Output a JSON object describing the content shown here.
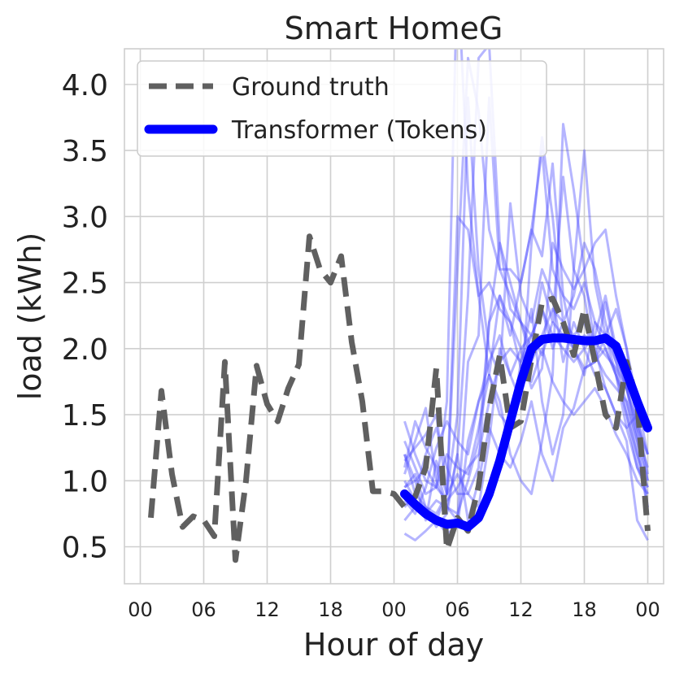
{
  "chart_data": {
    "type": "line",
    "title": "Smart HomeG",
    "xlabel": "Hour of day",
    "ylabel": "load (kWh)",
    "x_tick_labels": [
      "00",
      "06",
      "12",
      "18",
      "00",
      "06",
      "12",
      "18",
      "00"
    ],
    "x_tick_hours": [
      0,
      6,
      12,
      18,
      24,
      30,
      36,
      42,
      48
    ],
    "xlim": [
      -1.5,
      49.5
    ],
    "y_ticks": [
      0.5,
      1.0,
      1.5,
      2.0,
      2.5,
      3.0,
      3.5,
      4.0
    ],
    "y_tick_labels": [
      "0.5",
      "1.0",
      "1.5",
      "2.0",
      "2.5",
      "3.0",
      "3.5",
      "4.0"
    ],
    "ylim": [
      0.22,
      4.27
    ],
    "grid": true,
    "legend_position": "top-left",
    "legend": [
      "Ground truth",
      "Transformer (Tokens)"
    ],
    "series": [
      {
        "name": "Ground truth",
        "style": "dashed",
        "color": "#606060",
        "x": [
          1,
          2,
          3,
          4,
          5,
          6,
          7,
          8,
          9,
          10,
          11,
          12,
          13,
          14,
          15,
          16,
          17,
          18,
          19,
          20,
          21,
          22,
          23,
          24,
          25,
          26,
          27,
          28,
          29,
          30,
          31,
          32,
          33,
          34,
          35,
          36,
          37,
          38,
          39,
          40,
          41,
          42,
          43,
          44,
          45,
          46,
          47,
          48
        ],
        "y": [
          0.72,
          1.68,
          1.05,
          0.65,
          0.73,
          0.7,
          0.58,
          1.9,
          0.4,
          1.0,
          1.87,
          1.58,
          1.45,
          1.7,
          1.88,
          2.85,
          2.6,
          2.5,
          2.7,
          2.05,
          1.6,
          0.92,
          0.92,
          0.9,
          0.8,
          0.88,
          1.1,
          1.85,
          0.48,
          0.72,
          0.62,
          0.96,
          1.55,
          1.95,
          1.4,
          1.45,
          1.92,
          2.35,
          2.38,
          2.2,
          1.95,
          2.3,
          1.9,
          1.5,
          1.4,
          1.9,
          1.6,
          0.62
        ]
      },
      {
        "name": "Transformer (Tokens)",
        "style": "solid",
        "color": "#0000ff",
        "x": [
          25,
          26,
          27,
          28,
          29,
          30,
          31,
          32,
          33,
          34,
          35,
          36,
          37,
          38,
          39,
          40,
          41,
          42,
          43,
          44,
          45,
          46,
          47,
          48
        ],
        "y": [
          0.9,
          0.82,
          0.75,
          0.7,
          0.67,
          0.68,
          0.65,
          0.72,
          0.9,
          1.15,
          1.45,
          1.75,
          2.0,
          2.07,
          2.08,
          2.08,
          2.07,
          2.06,
          2.06,
          2.08,
          2.02,
          1.82,
          1.6,
          1.4
        ]
      }
    ],
    "samples": {
      "color": "#4f4fff",
      "x_start": 25,
      "lines": [
        [
          1.45,
          1.2,
          1.0,
          0.95,
          1.6,
          4.9,
          3.2,
          2.4,
          1.8,
          2.4,
          2.2,
          1.85,
          1.75,
          2.0,
          1.75,
          1.6,
          1.5,
          1.6,
          1.7,
          1.55,
          1.35,
          1.2,
          1.0,
          0.9
        ],
        [
          1.2,
          0.9,
          0.8,
          0.75,
          0.9,
          1.5,
          3.9,
          2.6,
          2.0,
          1.8,
          3.1,
          2.4,
          2.2,
          2.6,
          2.4,
          1.9,
          2.2,
          2.0,
          2.1,
          2.4,
          2.0,
          1.7,
          1.4,
          1.0
        ],
        [
          1.05,
          1.3,
          1.55,
          1.0,
          0.8,
          1.2,
          2.4,
          4.2,
          4.3,
          2.8,
          2.3,
          2.2,
          2.0,
          2.5,
          2.2,
          3.3,
          2.6,
          2.4,
          1.9,
          2.1,
          2.3,
          2.0,
          1.4,
          1.2
        ],
        [
          0.95,
          1.0,
          0.7,
          1.15,
          0.9,
          1.05,
          0.9,
          0.8,
          1.3,
          2.0,
          1.8,
          1.6,
          2.8,
          3.6,
          3.0,
          2.2,
          2.4,
          2.8,
          2.6,
          2.2,
          1.9,
          1.5,
          1.1,
          0.95
        ],
        [
          0.6,
          0.55,
          0.62,
          0.7,
          0.6,
          0.65,
          1.3,
          1.6,
          1.8,
          1.5,
          1.4,
          1.9,
          2.3,
          1.6,
          1.2,
          1.5,
          2.6,
          3.5,
          2.5,
          2.1,
          1.8,
          1.4,
          1.5,
          1.05
        ],
        [
          1.3,
          1.1,
          0.9,
          0.95,
          1.2,
          1.1,
          1.05,
          1.4,
          1.8,
          1.6,
          1.2,
          1.0,
          0.9,
          1.3,
          1.8,
          3.7,
          3.2,
          2.6,
          2.0,
          1.7,
          1.5,
          1.3,
          0.7,
          0.55
        ],
        [
          0.8,
          0.9,
          1.2,
          1.4,
          1.1,
          0.9,
          0.9,
          1.1,
          2.2,
          2.8,
          2.5,
          2.2,
          2.1,
          2.3,
          2.0,
          2.2,
          2.1,
          2.2,
          1.95,
          1.8,
          1.7,
          1.6,
          1.3,
          0.8
        ],
        [
          1.1,
          1.45,
          1.25,
          1.1,
          0.8,
          0.7,
          1.9,
          2.1,
          3.9,
          2.6,
          2.6,
          2.5,
          2.9,
          2.7,
          3.4,
          2.4,
          2.0,
          1.8,
          2.2,
          2.0,
          1.8,
          1.6,
          1.2,
          0.8
        ],
        [
          0.85,
          0.75,
          0.95,
          1.25,
          1.45,
          1.3,
          1.2,
          1.6,
          1.9,
          2.1,
          1.8,
          2.0,
          1.7,
          1.85,
          2.8,
          2.6,
          2.45,
          2.6,
          2.8,
          2.9,
          2.4,
          2.0,
          1.6,
          1.2
        ],
        [
          0.95,
          1.05,
          0.8,
          0.65,
          0.75,
          1.2,
          0.7,
          1.0,
          1.4,
          1.2,
          1.1,
          1.3,
          1.6,
          1.2,
          1.0,
          1.4,
          1.55,
          1.85,
          1.9,
          2.35,
          1.95,
          1.7,
          1.3,
          1.0
        ],
        [
          1.15,
          1.25,
          1.35,
          1.5,
          0.9,
          3.0,
          2.9,
          2.4,
          2.5,
          2.3,
          2.2,
          2.0,
          2.1,
          2.3,
          2.1,
          2.0,
          1.9,
          2.0,
          1.8,
          1.7,
          1.5,
          1.4,
          1.1,
          0.9
        ],
        [
          1.0,
          0.85,
          0.75,
          0.7,
          0.9,
          2.6,
          4.2,
          3.8,
          2.9,
          2.6,
          2.4,
          2.2,
          1.9,
          2.1,
          2.3,
          2.2,
          2.0,
          2.1,
          2.05,
          1.95,
          1.85,
          1.7,
          1.45,
          1.2
        ],
        [
          0.7,
          0.8,
          0.75,
          0.85,
          0.8,
          0.75,
          1.0,
          1.3,
          2.2,
          2.4,
          2.1,
          2.5,
          2.9,
          3.5,
          2.6,
          2.4,
          2.3,
          2.5,
          2.2,
          2.1,
          1.9,
          1.7,
          1.35,
          1.1
        ],
        [
          1.2,
          1.0,
          1.1,
          0.95,
          0.85,
          0.95,
          1.1,
          1.2,
          1.6,
          1.9,
          2.0,
          1.9,
          2.1,
          1.95,
          2.2,
          2.1,
          2.0,
          1.85,
          1.9,
          2.0,
          1.8,
          1.5,
          1.2,
          0.95
        ]
      ]
    }
  }
}
